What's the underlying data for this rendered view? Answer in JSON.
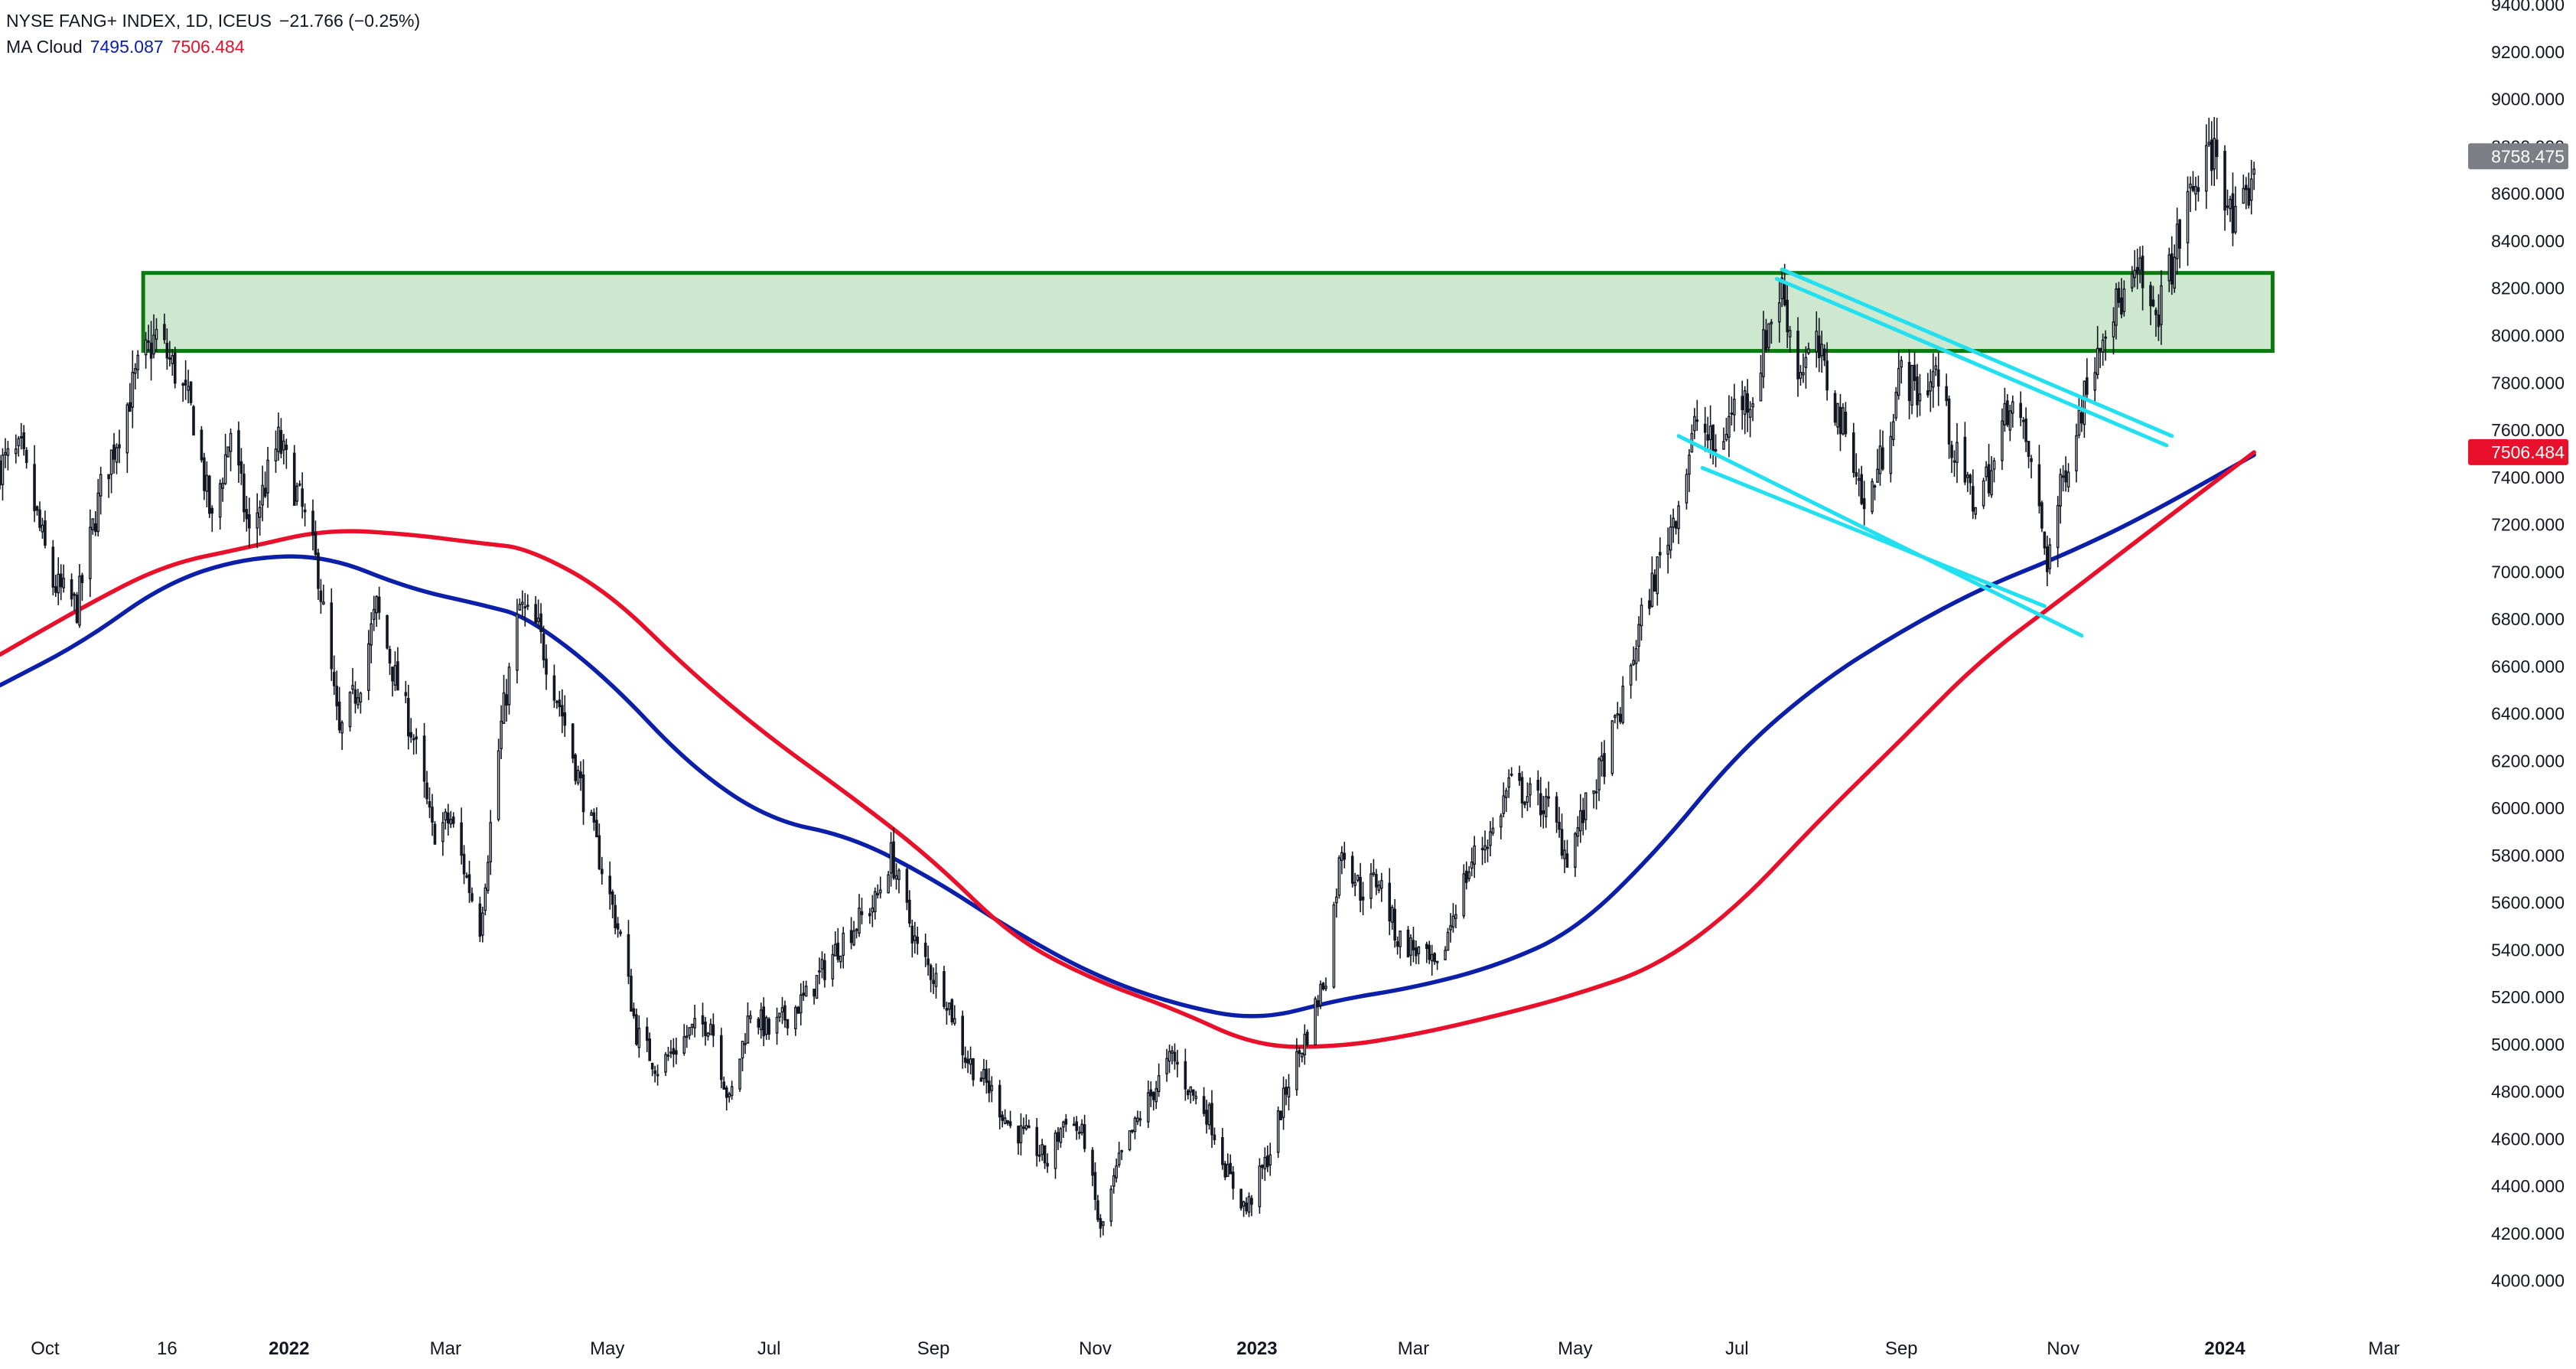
{
  "legend": {
    "symbol": "NYSE FANG+ INDEX, 1D, ICEUS",
    "change": "−21.766 (−0.25%)",
    "indicator": "MA Cloud",
    "ma_fast_value": "7495.087",
    "ma_slow_value": "7506.484"
  },
  "colors": {
    "candles": "#131722",
    "ma_fast": "#0b1fa8",
    "ma_slow": "#e8102a",
    "zone_fill": "#cde8cf",
    "zone_border": "#0d7a10",
    "channel": "#22e0f0",
    "last_price_badge": "#7d7f86",
    "ma_badge": "#e8102a"
  },
  "chart_data": {
    "type": "candlestick",
    "interval": "1D",
    "y_axis": {
      "position": "right",
      "ylim": [
        3850,
        9420
      ],
      "ticks": [
        4000,
        4200,
        4400,
        4600,
        4800,
        5000,
        5200,
        5400,
        5600,
        5800,
        6000,
        6200,
        6400,
        6600,
        6800,
        7000,
        7200,
        7400,
        7600,
        7800,
        8000,
        8200,
        8400,
        8600,
        8800,
        9000,
        9200,
        9400
      ],
      "tick_labels": [
        "4000.000",
        "4200.000",
        "4400.000",
        "4600.000",
        "4800.000",
        "5000.000",
        "5200.000",
        "5400.000",
        "5600.000",
        "5800.000",
        "6000.000",
        "6200.000",
        "6400.000",
        "6600.000",
        "6800.000",
        "7000.000",
        "7200.000",
        "7400.000",
        "7600.000",
        "7800.000",
        "8000.000",
        "8200.000",
        "8400.000",
        "8600.000",
        "8800.000",
        "9000.000",
        "9200.000",
        "9400.000"
      ]
    },
    "x_axis": {
      "xlim": [
        "2021-09-14",
        "2024-03-31"
      ],
      "ticks": [
        {
          "date": "2021-10-01",
          "label": "Oct",
          "bold": false
        },
        {
          "date": "2021-11-16",
          "label": "16",
          "bold": false
        },
        {
          "date": "2022-01-01",
          "label": "2022",
          "bold": true
        },
        {
          "date": "2022-03-01",
          "label": "Mar",
          "bold": false
        },
        {
          "date": "2022-05-01",
          "label": "May",
          "bold": false
        },
        {
          "date": "2022-07-01",
          "label": "Jul",
          "bold": false
        },
        {
          "date": "2022-09-01",
          "label": "Sep",
          "bold": false
        },
        {
          "date": "2022-11-01",
          "label": "Nov",
          "bold": false
        },
        {
          "date": "2023-01-01",
          "label": "2023",
          "bold": true
        },
        {
          "date": "2023-03-01",
          "label": "Mar",
          "bold": false
        },
        {
          "date": "2023-05-01",
          "label": "May",
          "bold": false
        },
        {
          "date": "2023-07-01",
          "label": "Jul",
          "bold": false
        },
        {
          "date": "2023-09-01",
          "label": "Sep",
          "bold": false
        },
        {
          "date": "2023-11-01",
          "label": "Nov",
          "bold": false
        },
        {
          "date": "2024-01-01",
          "label": "2024",
          "bold": true
        },
        {
          "date": "2024-03-01",
          "label": "Mar",
          "bold": false
        }
      ]
    },
    "price_path": [
      {
        "date": "2021-09-14",
        "close": 7450
      },
      {
        "date": "2021-09-22",
        "close": 7500
      },
      {
        "date": "2021-10-04",
        "close": 6950
      },
      {
        "date": "2021-10-13",
        "close": 6850
      },
      {
        "date": "2021-10-22",
        "close": 7350
      },
      {
        "date": "2021-11-05",
        "close": 7850
      },
      {
        "date": "2021-11-12",
        "close": 8000
      },
      {
        "date": "2021-11-19",
        "close": 7850
      },
      {
        "date": "2021-11-26",
        "close": 7650
      },
      {
        "date": "2021-12-03",
        "close": 7200
      },
      {
        "date": "2021-12-10",
        "close": 7600
      },
      {
        "date": "2021-12-17",
        "close": 7150
      },
      {
        "date": "2021-12-28",
        "close": 7550
      },
      {
        "date": "2022-01-05",
        "close": 7300
      },
      {
        "date": "2022-01-12",
        "close": 7000
      },
      {
        "date": "2022-01-20",
        "close": 6300
      },
      {
        "date": "2022-01-28",
        "close": 6550
      },
      {
        "date": "2022-02-03",
        "close": 6850
      },
      {
        "date": "2022-02-10",
        "close": 6550
      },
      {
        "date": "2022-02-17",
        "close": 6300
      },
      {
        "date": "2022-02-24",
        "close": 5900
      },
      {
        "date": "2022-03-03",
        "close": 5950
      },
      {
        "date": "2022-03-14",
        "close": 5500
      },
      {
        "date": "2022-03-22",
        "close": 6350
      },
      {
        "date": "2022-03-29",
        "close": 6850
      },
      {
        "date": "2022-04-05",
        "close": 6750
      },
      {
        "date": "2022-04-14",
        "close": 6400
      },
      {
        "date": "2022-04-22",
        "close": 6050
      },
      {
        "date": "2022-04-29",
        "close": 5750
      },
      {
        "date": "2022-05-06",
        "close": 5450
      },
      {
        "date": "2022-05-12",
        "close": 5050
      },
      {
        "date": "2022-05-20",
        "close": 4900
      },
      {
        "date": "2022-06-01",
        "close": 5050
      },
      {
        "date": "2022-06-09",
        "close": 5100
      },
      {
        "date": "2022-06-16",
        "close": 4750
      },
      {
        "date": "2022-06-24",
        "close": 5150
      },
      {
        "date": "2022-07-01",
        "close": 5050
      },
      {
        "date": "2022-07-15",
        "close": 5200
      },
      {
        "date": "2022-07-29",
        "close": 5450
      },
      {
        "date": "2022-08-10",
        "close": 5600
      },
      {
        "date": "2022-08-16",
        "close": 5800
      },
      {
        "date": "2022-08-26",
        "close": 5400
      },
      {
        "date": "2022-09-06",
        "close": 5200
      },
      {
        "date": "2022-09-13",
        "close": 4950
      },
      {
        "date": "2022-09-23",
        "close": 4800
      },
      {
        "date": "2022-09-30",
        "close": 4650
      },
      {
        "date": "2022-10-07",
        "close": 4600
      },
      {
        "date": "2022-10-14",
        "close": 4500
      },
      {
        "date": "2022-10-21",
        "close": 4700
      },
      {
        "date": "2022-10-28",
        "close": 4600
      },
      {
        "date": "2022-11-03",
        "close": 4200
      },
      {
        "date": "2022-11-10",
        "close": 4500
      },
      {
        "date": "2022-11-18",
        "close": 4700
      },
      {
        "date": "2022-11-30",
        "close": 4950
      },
      {
        "date": "2022-12-07",
        "close": 4800
      },
      {
        "date": "2022-12-14",
        "close": 4700
      },
      {
        "date": "2022-12-21",
        "close": 4450
      },
      {
        "date": "2022-12-28",
        "close": 4300
      },
      {
        "date": "2023-01-06",
        "close": 4550
      },
      {
        "date": "2023-01-13",
        "close": 4850
      },
      {
        "date": "2023-01-20",
        "close": 5050
      },
      {
        "date": "2023-01-27",
        "close": 5300
      },
      {
        "date": "2023-02-02",
        "close": 5850
      },
      {
        "date": "2023-02-09",
        "close": 5650
      },
      {
        "date": "2023-02-16",
        "close": 5700
      },
      {
        "date": "2023-02-23",
        "close": 5450
      },
      {
        "date": "2023-03-02",
        "close": 5400
      },
      {
        "date": "2023-03-10",
        "close": 5300
      },
      {
        "date": "2023-03-17",
        "close": 5600
      },
      {
        "date": "2023-03-24",
        "close": 5800
      },
      {
        "date": "2023-03-31",
        "close": 5900
      },
      {
        "date": "2023-04-06",
        "close": 6100
      },
      {
        "date": "2023-04-14",
        "close": 6050
      },
      {
        "date": "2023-04-21",
        "close": 6000
      },
      {
        "date": "2023-04-28",
        "close": 5800
      },
      {
        "date": "2023-05-05",
        "close": 6000
      },
      {
        "date": "2023-05-12",
        "close": 6200
      },
      {
        "date": "2023-05-19",
        "close": 6450
      },
      {
        "date": "2023-05-26",
        "close": 6800
      },
      {
        "date": "2023-06-02",
        "close": 7050
      },
      {
        "date": "2023-06-09",
        "close": 7300
      },
      {
        "date": "2023-06-16",
        "close": 7650
      },
      {
        "date": "2023-06-23",
        "close": 7500
      },
      {
        "date": "2023-06-30",
        "close": 7700
      },
      {
        "date": "2023-07-07",
        "close": 7750
      },
      {
        "date": "2023-07-13",
        "close": 8050
      },
      {
        "date": "2023-07-18",
        "close": 8200
      },
      {
        "date": "2023-07-24",
        "close": 7850
      },
      {
        "date": "2023-07-31",
        "close": 7950
      },
      {
        "date": "2023-08-07",
        "close": 7700
      },
      {
        "date": "2023-08-14",
        "close": 7500
      },
      {
        "date": "2023-08-18",
        "close": 7250
      },
      {
        "date": "2023-08-25",
        "close": 7500
      },
      {
        "date": "2023-09-01",
        "close": 7850
      },
      {
        "date": "2023-09-08",
        "close": 7750
      },
      {
        "date": "2023-09-14",
        "close": 7850
      },
      {
        "date": "2023-09-21",
        "close": 7500
      },
      {
        "date": "2023-09-28",
        "close": 7300
      },
      {
        "date": "2023-10-06",
        "close": 7450
      },
      {
        "date": "2023-10-12",
        "close": 7750
      },
      {
        "date": "2023-10-19",
        "close": 7500
      },
      {
        "date": "2023-10-26",
        "close": 7050
      },
      {
        "date": "2023-11-02",
        "close": 7450
      },
      {
        "date": "2023-11-09",
        "close": 7750
      },
      {
        "date": "2023-11-16",
        "close": 8050
      },
      {
        "date": "2023-11-23",
        "close": 8150
      },
      {
        "date": "2023-11-30",
        "close": 8250
      },
      {
        "date": "2023-12-05",
        "close": 8050
      },
      {
        "date": "2023-12-12",
        "close": 8300
      },
      {
        "date": "2023-12-19",
        "close": 8600
      },
      {
        "date": "2023-12-26",
        "close": 8750
      },
      {
        "date": "2023-12-29",
        "close": 8800
      },
      {
        "date": "2024-01-04",
        "close": 8450
      },
      {
        "date": "2024-01-09",
        "close": 8550
      },
      {
        "date": "2024-01-12",
        "close": 8750
      }
    ],
    "series": [
      {
        "name": "MA Cloud 7495.087",
        "values": [
          {
            "date": "2021-09-14",
            "value": 6520
          },
          {
            "date": "2021-10-15",
            "value": 6700
          },
          {
            "date": "2021-11-15",
            "value": 6950
          },
          {
            "date": "2021-12-15",
            "value": 7060
          },
          {
            "date": "2022-01-15",
            "value": 7070
          },
          {
            "date": "2022-02-15",
            "value": 6930
          },
          {
            "date": "2022-03-15",
            "value": 6860
          },
          {
            "date": "2022-04-01",
            "value": 6810
          },
          {
            "date": "2022-05-01",
            "value": 6550
          },
          {
            "date": "2022-06-01",
            "value": 6180
          },
          {
            "date": "2022-07-01",
            "value": 5950
          },
          {
            "date": "2022-08-01",
            "value": 5880
          },
          {
            "date": "2022-09-01",
            "value": 5700
          },
          {
            "date": "2022-10-01",
            "value": 5480
          },
          {
            "date": "2022-11-01",
            "value": 5290
          },
          {
            "date": "2022-12-01",
            "value": 5170
          },
          {
            "date": "2023-01-01",
            "value": 5100
          },
          {
            "date": "2023-02-01",
            "value": 5190
          },
          {
            "date": "2023-03-01",
            "value": 5240
          },
          {
            "date": "2023-04-01",
            "value": 5330
          },
          {
            "date": "2023-05-01",
            "value": 5480
          },
          {
            "date": "2023-06-01",
            "value": 5820
          },
          {
            "date": "2023-07-01",
            "value": 6230
          },
          {
            "date": "2023-08-01",
            "value": 6530
          },
          {
            "date": "2023-09-01",
            "value": 6750
          },
          {
            "date": "2023-10-01",
            "value": 6930
          },
          {
            "date": "2023-11-01",
            "value": 7070
          },
          {
            "date": "2023-12-01",
            "value": 7230
          },
          {
            "date": "2024-01-12",
            "value": 7495
          }
        ]
      },
      {
        "name": "MA Cloud 7506.484",
        "values": [
          {
            "date": "2021-09-14",
            "value": 6650
          },
          {
            "date": "2021-10-15",
            "value": 6850
          },
          {
            "date": "2021-11-15",
            "value": 7030
          },
          {
            "date": "2021-12-15",
            "value": 7100
          },
          {
            "date": "2022-01-15",
            "value": 7180
          },
          {
            "date": "2022-02-15",
            "value": 7160
          },
          {
            "date": "2022-03-15",
            "value": 7120
          },
          {
            "date": "2022-04-01",
            "value": 7100
          },
          {
            "date": "2022-05-01",
            "value": 6920
          },
          {
            "date": "2022-06-01",
            "value": 6580
          },
          {
            "date": "2022-07-01",
            "value": 6300
          },
          {
            "date": "2022-08-01",
            "value": 6050
          },
          {
            "date": "2022-09-01",
            "value": 5780
          },
          {
            "date": "2022-10-01",
            "value": 5450
          },
          {
            "date": "2022-11-01",
            "value": 5270
          },
          {
            "date": "2022-12-01",
            "value": 5150
          },
          {
            "date": "2023-01-01",
            "value": 4990
          },
          {
            "date": "2023-02-01",
            "value": 4990
          },
          {
            "date": "2023-03-01",
            "value": 5040
          },
          {
            "date": "2023-04-01",
            "value": 5120
          },
          {
            "date": "2023-05-01",
            "value": 5210
          },
          {
            "date": "2023-06-01",
            "value": 5330
          },
          {
            "date": "2023-07-01",
            "value": 5580
          },
          {
            "date": "2023-08-01",
            "value": 5950
          },
          {
            "date": "2023-09-01",
            "value": 6290
          },
          {
            "date": "2023-10-01",
            "value": 6630
          },
          {
            "date": "2023-11-01",
            "value": 6890
          },
          {
            "date": "2023-12-01",
            "value": 7150
          },
          {
            "date": "2024-01-12",
            "value": 7506
          }
        ]
      }
    ],
    "price_labels": [
      {
        "value": 8758.475,
        "label": "8758.475",
        "color": "#7d7f86"
      },
      {
        "value": 7506.484,
        "label": "7506.484",
        "color": "#e8102a"
      }
    ],
    "zone": {
      "x_start": "2021-11-07",
      "x_end": "2024-01-19",
      "y_low": 7935,
      "y_high": 8265
    },
    "channel": [
      {
        "x1": "2023-07-18",
        "y1": 8280,
        "x2": "2023-12-12",
        "y2": 7575
      },
      {
        "x1": "2023-07-16",
        "y1": 8240,
        "x2": "2023-12-10",
        "y2": 7535
      },
      {
        "x1": "2023-06-09",
        "y1": 7575,
        "x2": "2023-11-08",
        "y2": 6730
      },
      {
        "x1": "2023-06-18",
        "y1": 7440,
        "x2": "2023-10-25",
        "y2": 6855
      }
    ]
  }
}
